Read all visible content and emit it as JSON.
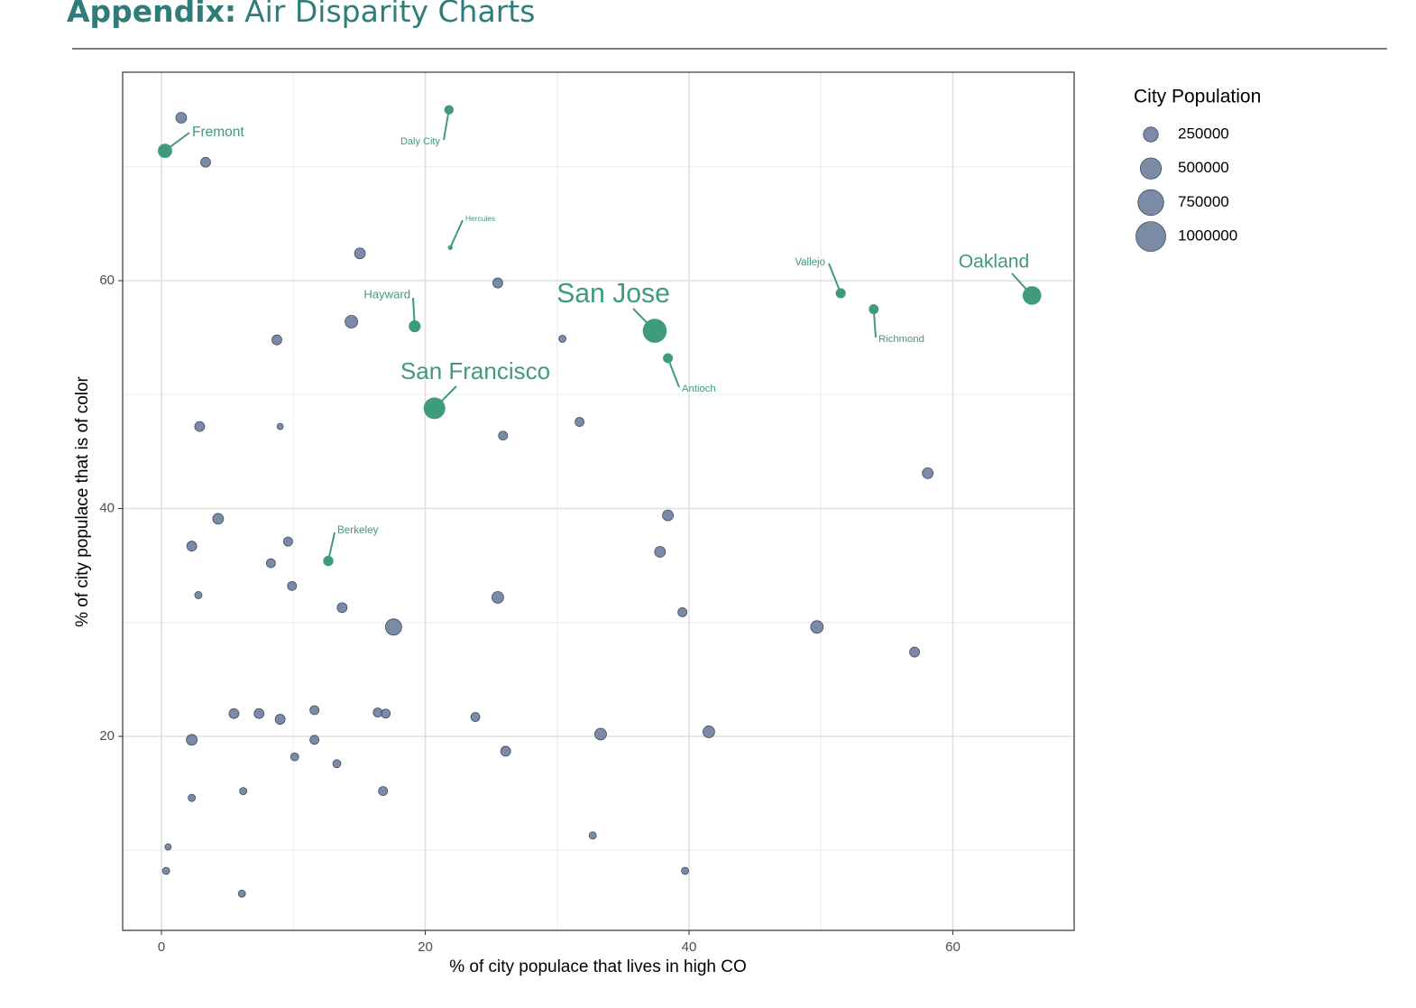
{
  "header": {
    "title_bold": "Appendix:",
    "title": "Air Disparity Charts"
  },
  "chart_data": {
    "type": "scatter",
    "x_label": "% of city populace that lives in high CO",
    "y_label": "% of city populace that is of color",
    "xlim": [
      -2.94,
      69.2
    ],
    "ylim": [
      2.97,
      78.3
    ],
    "xticks": [
      0,
      20,
      40,
      60
    ],
    "yticks": [
      20,
      40,
      60
    ],
    "grid": true,
    "color": "#5b6e8f",
    "label_color": "#3f9a7e",
    "legend_title": "City Population",
    "legend_sizes": [
      250000,
      500000,
      750000,
      1000000
    ],
    "legend_position": "right",
    "labels": [
      "Fremont",
      "Daly City",
      "Hercules",
      "Hayward",
      "San Jose",
      "San Francisco",
      "Antioch",
      "Vallejo",
      "Richmond",
      "Oakland",
      "Berkeley",
      null,
      null,
      null,
      null,
      null,
      null,
      null,
      null,
      null,
      null,
      null,
      null,
      null,
      null,
      null,
      null,
      null,
      null,
      null,
      null,
      null,
      null,
      null,
      null,
      null,
      null,
      null,
      null,
      null,
      null,
      null,
      null,
      null,
      null,
      null,
      null,
      null,
      null,
      null,
      null,
      null,
      null,
      null,
      null,
      null,
      null,
      null,
      null
    ],
    "x": [
      0.27,
      21.8,
      21.9,
      19.2,
      37.4,
      20.7,
      38.4,
      51.5,
      54.0,
      66.0,
      12.65,
      1.5,
      3.35,
      15.05,
      25.5,
      14.4,
      8.75,
      30.4,
      2.9,
      9.0,
      25.9,
      31.7,
      58.1,
      4.3,
      38.4,
      2.3,
      9.6,
      8.3,
      37.8,
      9.9,
      2.8,
      25.5,
      13.7,
      39.5,
      17.6,
      49.7,
      57.1,
      5.5,
      7.4,
      9.0,
      11.6,
      16.4,
      17.0,
      23.8,
      33.3,
      41.5,
      2.3,
      11.6,
      10.1,
      26.1,
      13.3,
      6.2,
      16.8,
      2.3,
      32.7,
      0.5,
      0.35,
      39.7,
      6.1
    ],
    "y": [
      71.4,
      75.0,
      62.9,
      56.0,
      55.6,
      48.8,
      53.2,
      58.9,
      57.5,
      58.7,
      35.4,
      74.3,
      70.4,
      62.4,
      59.8,
      56.4,
      54.8,
      54.9,
      47.2,
      47.2,
      46.4,
      47.6,
      43.1,
      39.1,
      39.4,
      36.7,
      37.1,
      35.2,
      36.2,
      33.2,
      32.4,
      32.2,
      31.3,
      30.9,
      29.6,
      29.6,
      27.4,
      22.0,
      22.0,
      21.5,
      22.3,
      22.1,
      22.0,
      21.7,
      20.2,
      20.4,
      19.7,
      19.7,
      18.2,
      18.7,
      17.6,
      15.2,
      15.2,
      14.6,
      11.3,
      10.3,
      8.2,
      8.2,
      6.2
    ],
    "sizes": [
      230000,
      100000,
      25000,
      160000,
      650000,
      530000,
      110000,
      115000,
      110000,
      390000,
      120000,
      132000,
      111000,
      132000,
      111000,
      180000,
      111000,
      59000,
      111000,
      45000,
      92000,
      92000,
      132000,
      132000,
      132000,
      111000,
      92000,
      92000,
      132000,
      92000,
      59000,
      155000,
      111000,
      92000,
      298000,
      180000,
      111000,
      111000,
      111000,
      111000,
      92000,
      92000,
      92000,
      92000,
      155000,
      155000,
      132000,
      92000,
      74000,
      111000,
      74000,
      59000,
      92000,
      59000,
      59000,
      45000,
      59000,
      59000,
      59000
    ]
  }
}
